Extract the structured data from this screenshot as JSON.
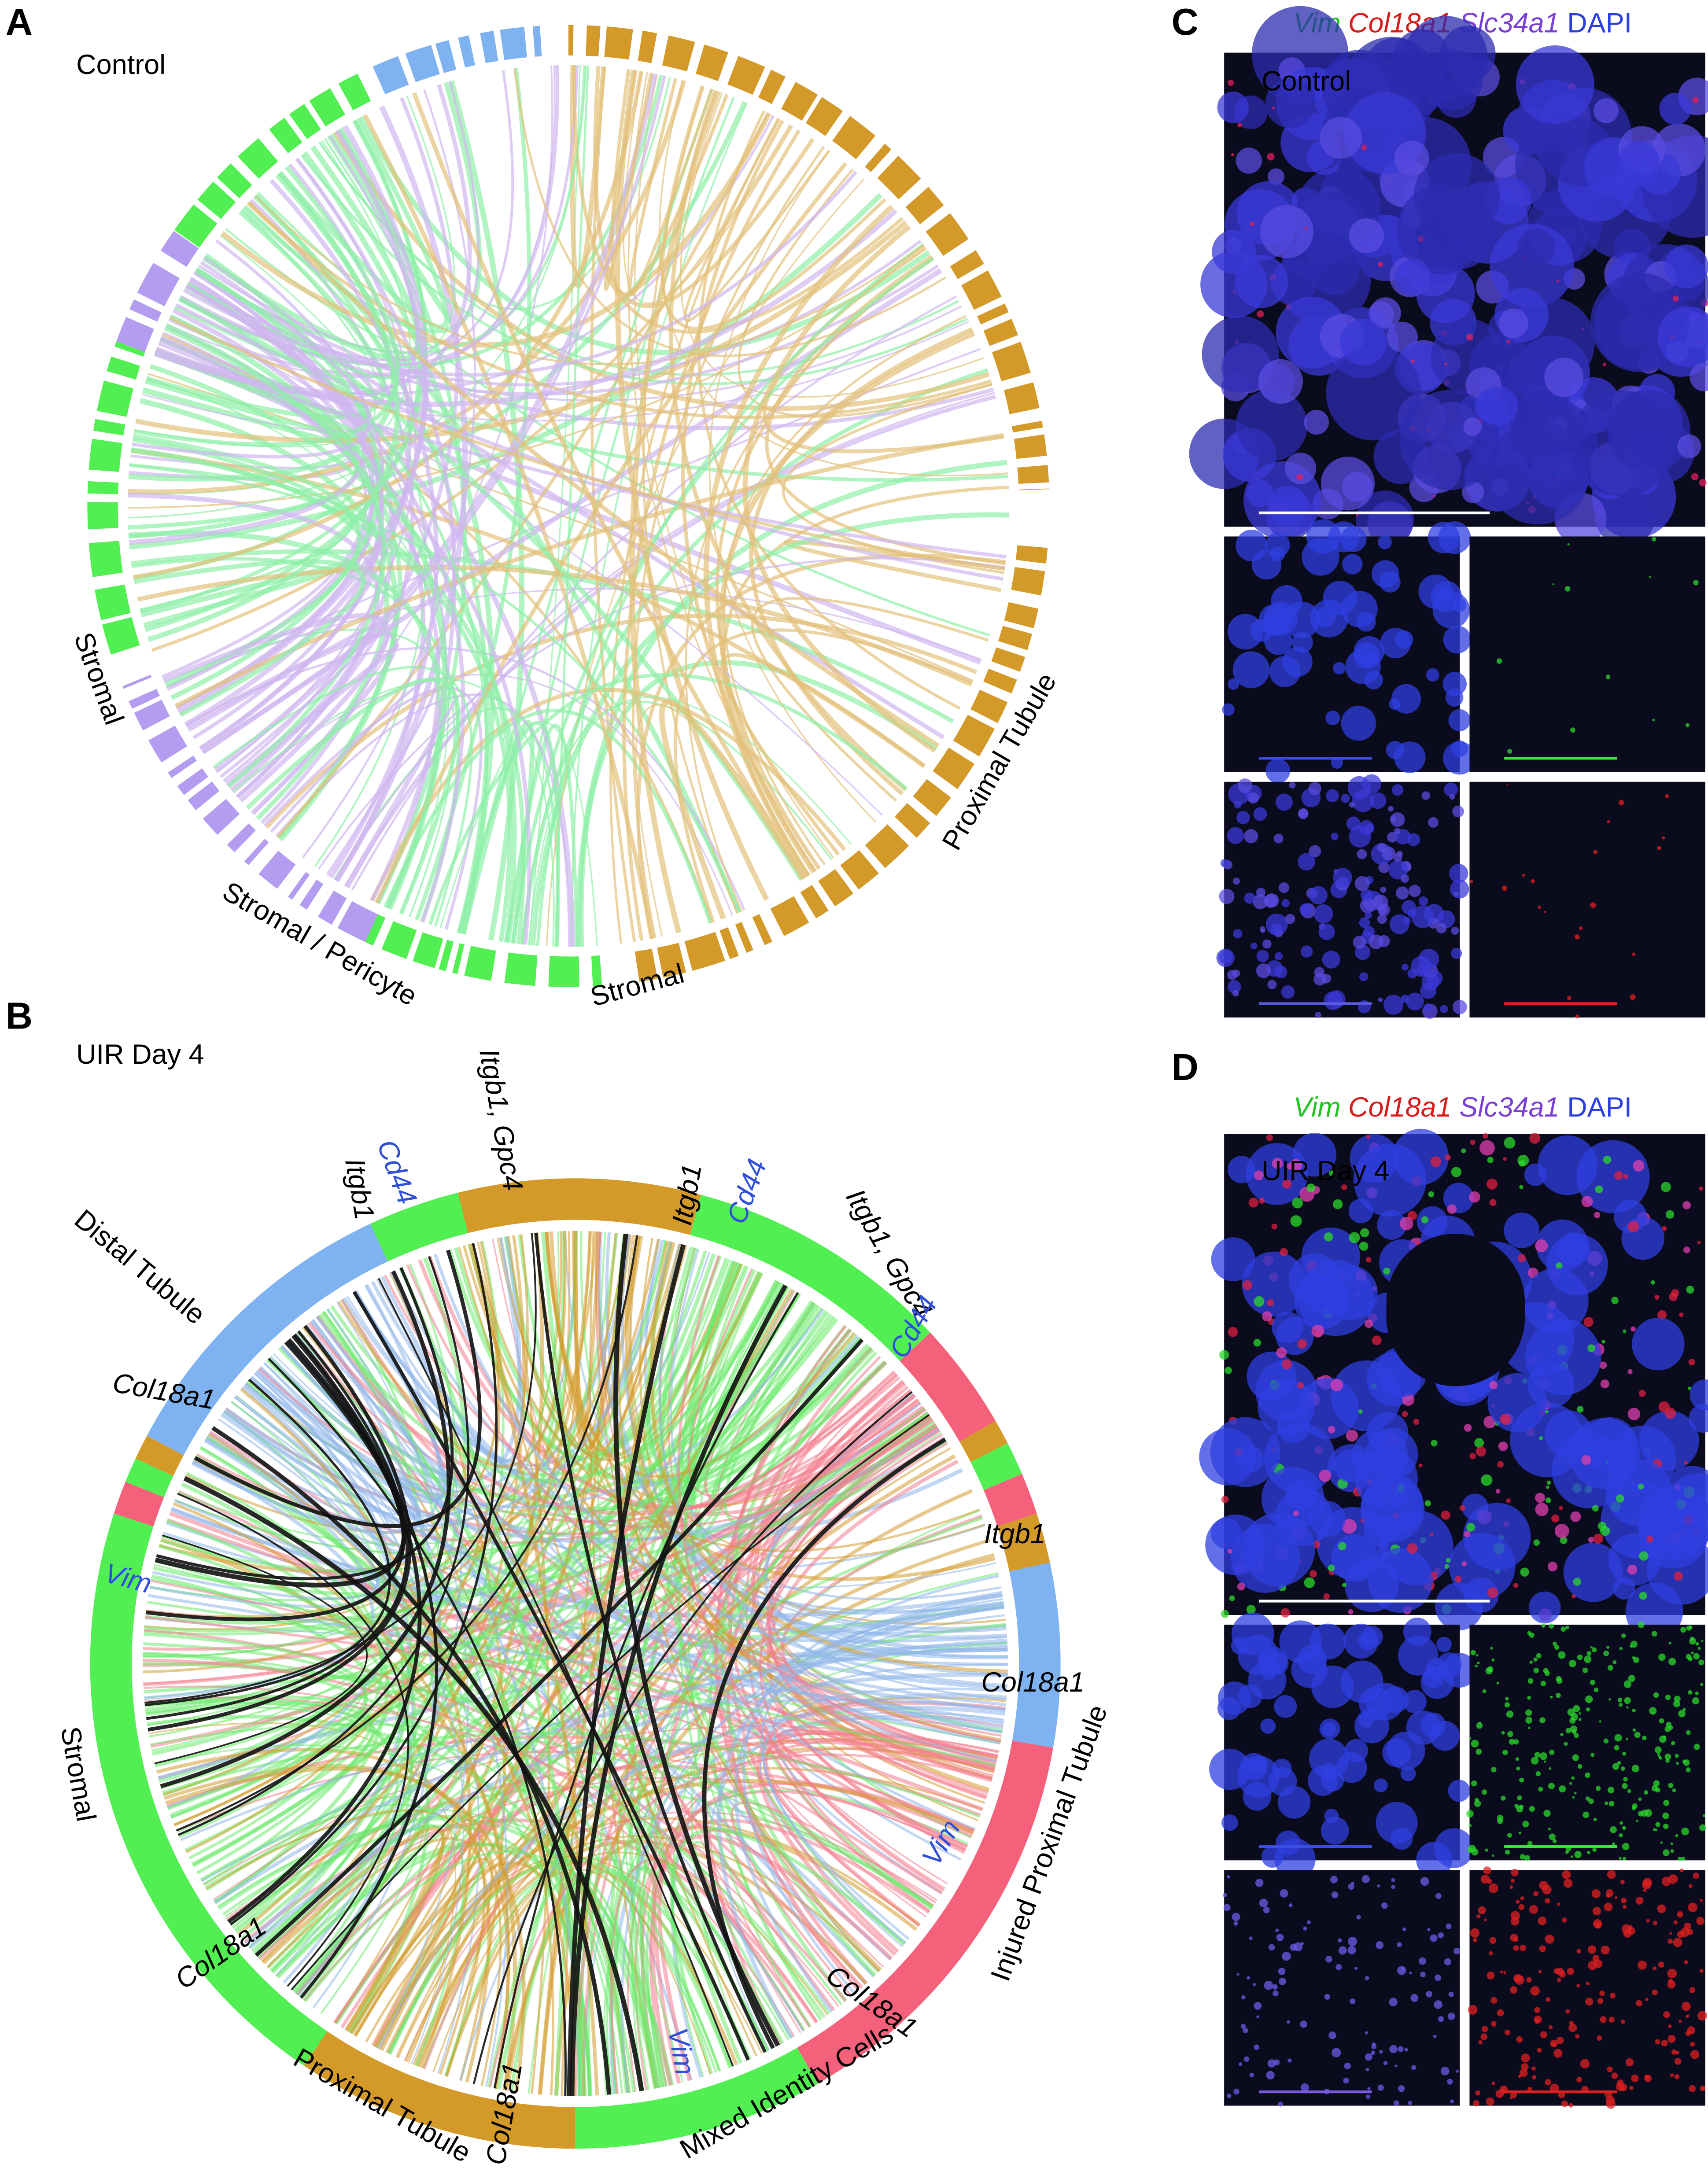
{
  "panel_a": {
    "label": "A",
    "title": "Control",
    "group_labels": [
      "Stromal",
      "Stromal / Pericyte",
      "Stromal",
      "Proximal Tubule"
    ]
  },
  "panel_b": {
    "label": "B",
    "title": "UIR Day 4",
    "group_labels": [
      "Distal Tubule",
      "Stromal",
      "Proximal Tubule",
      "Mixed Identity Cells",
      "Injured Proximal Tubule"
    ],
    "gene_labels": [
      "Itgb1, Gpc4",
      "Itgb1",
      "Cd44",
      "Itgb1",
      "Cd44",
      "Itgb1, Gpc4",
      "Cd44",
      "Col18a1",
      "Itgb1",
      "Vim",
      "Col18a1",
      "Col18a1",
      "Vim",
      "Col18a1",
      "Vim",
      "Col18a1"
    ]
  },
  "panel_c": {
    "label": "C",
    "legend": [
      "Vim",
      "Col18a1",
      "Slc34a1",
      "DAPI"
    ],
    "title": "Control"
  },
  "panel_d": {
    "label": "D",
    "legend": [
      "Vim",
      "Col18a1",
      "Slc34a1",
      "DAPI"
    ],
    "title": "UIR Day 4"
  }
}
